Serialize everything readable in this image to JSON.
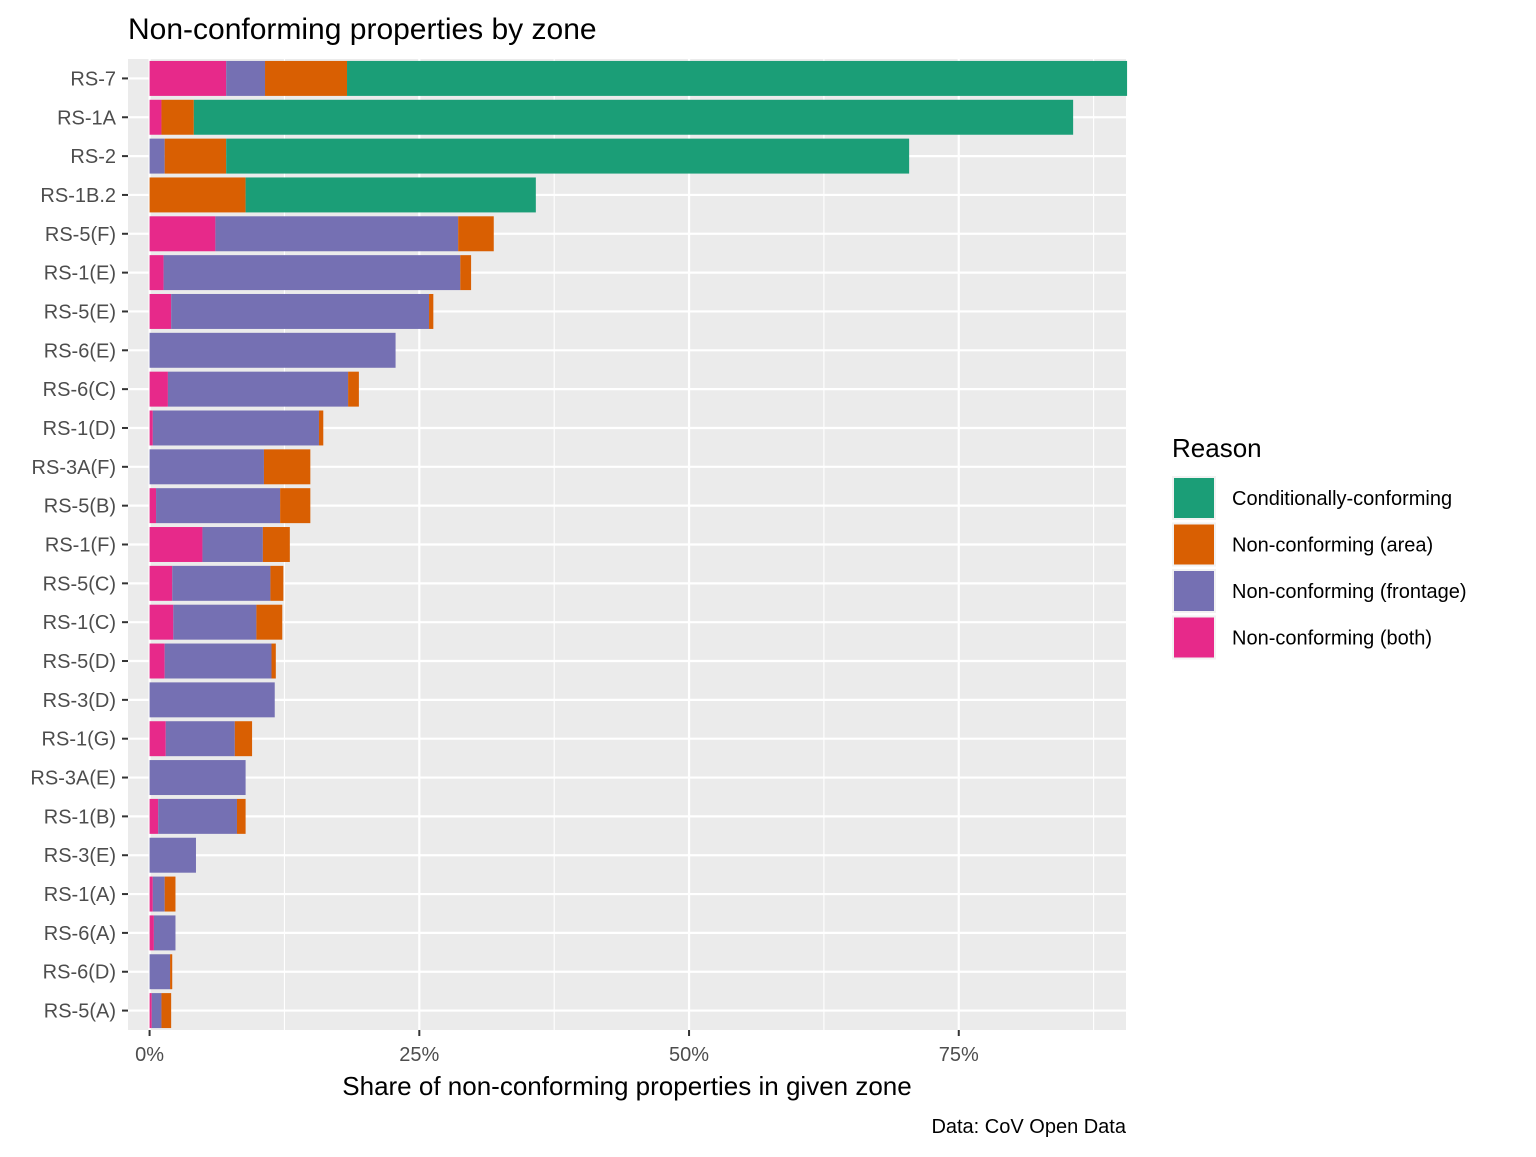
{
  "chart_data": {
    "type": "bar",
    "orientation": "horizontal",
    "stacked": true,
    "title": "Non-conforming properties by zone",
    "xlabel": "Share of non-conforming properties in given zone",
    "ylabel": "",
    "caption": "Data: CoV Open Data",
    "xlim": [
      -0.02,
      0.905
    ],
    "x_ticks": [
      0,
      0.25,
      0.5,
      0.75
    ],
    "x_tick_labels": [
      "0%",
      "25%",
      "50%",
      "75%"
    ],
    "grid": true,
    "legend": {
      "title": "Reason",
      "placement": "right",
      "items": [
        {
          "name": "Conditionally-conforming",
          "color": "#1B9E77"
        },
        {
          "name": "Non-conforming (area)",
          "color": "#D95F02"
        },
        {
          "name": "Non-conforming (frontage)",
          "color": "#7570B3"
        },
        {
          "name": "Non-conforming (both)",
          "color": "#E7298A"
        }
      ]
    },
    "categories": [
      "RS-7",
      "RS-1A",
      "RS-2",
      "RS-1B.2",
      "RS-5(F)",
      "RS-1(E)",
      "RS-5(E)",
      "RS-6(E)",
      "RS-6(C)",
      "RS-1(D)",
      "RS-3A(F)",
      "RS-5(B)",
      "RS-1(F)",
      "RS-5(C)",
      "RS-1(C)",
      "RS-5(D)",
      "RS-3(D)",
      "RS-1(G)",
      "RS-3A(E)",
      "RS-1(B)",
      "RS-3(E)",
      "RS-1(A)",
      "RS-6(A)",
      "RS-6(D)",
      "RS-5(A)"
    ],
    "stack_order": [
      "Non-conforming (both)",
      "Non-conforming (frontage)",
      "Non-conforming (area)",
      "Conditionally-conforming"
    ],
    "series": [
      {
        "name": "Non-conforming (both)",
        "color": "#E7298A",
        "values": [
          0.071,
          0.011,
          0,
          0,
          0.061,
          0.013,
          0.02,
          0,
          0.017,
          0.003,
          0,
          0.006,
          0.049,
          0.021,
          0.022,
          0.014,
          0,
          0.015,
          0,
          0.008,
          0,
          0.003,
          0.004,
          0,
          0.002
        ]
      },
      {
        "name": "Non-conforming (frontage)",
        "color": "#7570B3",
        "values": [
          0.036,
          0,
          0.014,
          0,
          0.225,
          0.275,
          0.239,
          0.228,
          0.167,
          0.154,
          0.106,
          0.115,
          0.056,
          0.091,
          0.077,
          0.099,
          0.116,
          0.064,
          0.089,
          0.073,
          0.043,
          0.011,
          0.02,
          0.019,
          0.009
        ]
      },
      {
        "name": "Non-conforming (area)",
        "color": "#D95F02",
        "values": [
          0.076,
          0.03,
          0.057,
          0.089,
          0.033,
          0.01,
          0.004,
          0,
          0.01,
          0.004,
          0.043,
          0.028,
          0.025,
          0.012,
          0.024,
          0.004,
          0,
          0.016,
          0,
          0.008,
          0,
          0.01,
          0,
          0.002,
          0.009
        ]
      },
      {
        "name": "Conditionally-conforming",
        "color": "#1B9E77",
        "values": [
          0.723,
          0.815,
          0.633,
          0.269,
          0,
          0,
          0,
          0,
          0,
          0,
          0,
          0,
          0,
          0,
          0,
          0,
          0,
          0,
          0,
          0,
          0,
          0,
          0,
          0,
          0
        ]
      }
    ]
  }
}
